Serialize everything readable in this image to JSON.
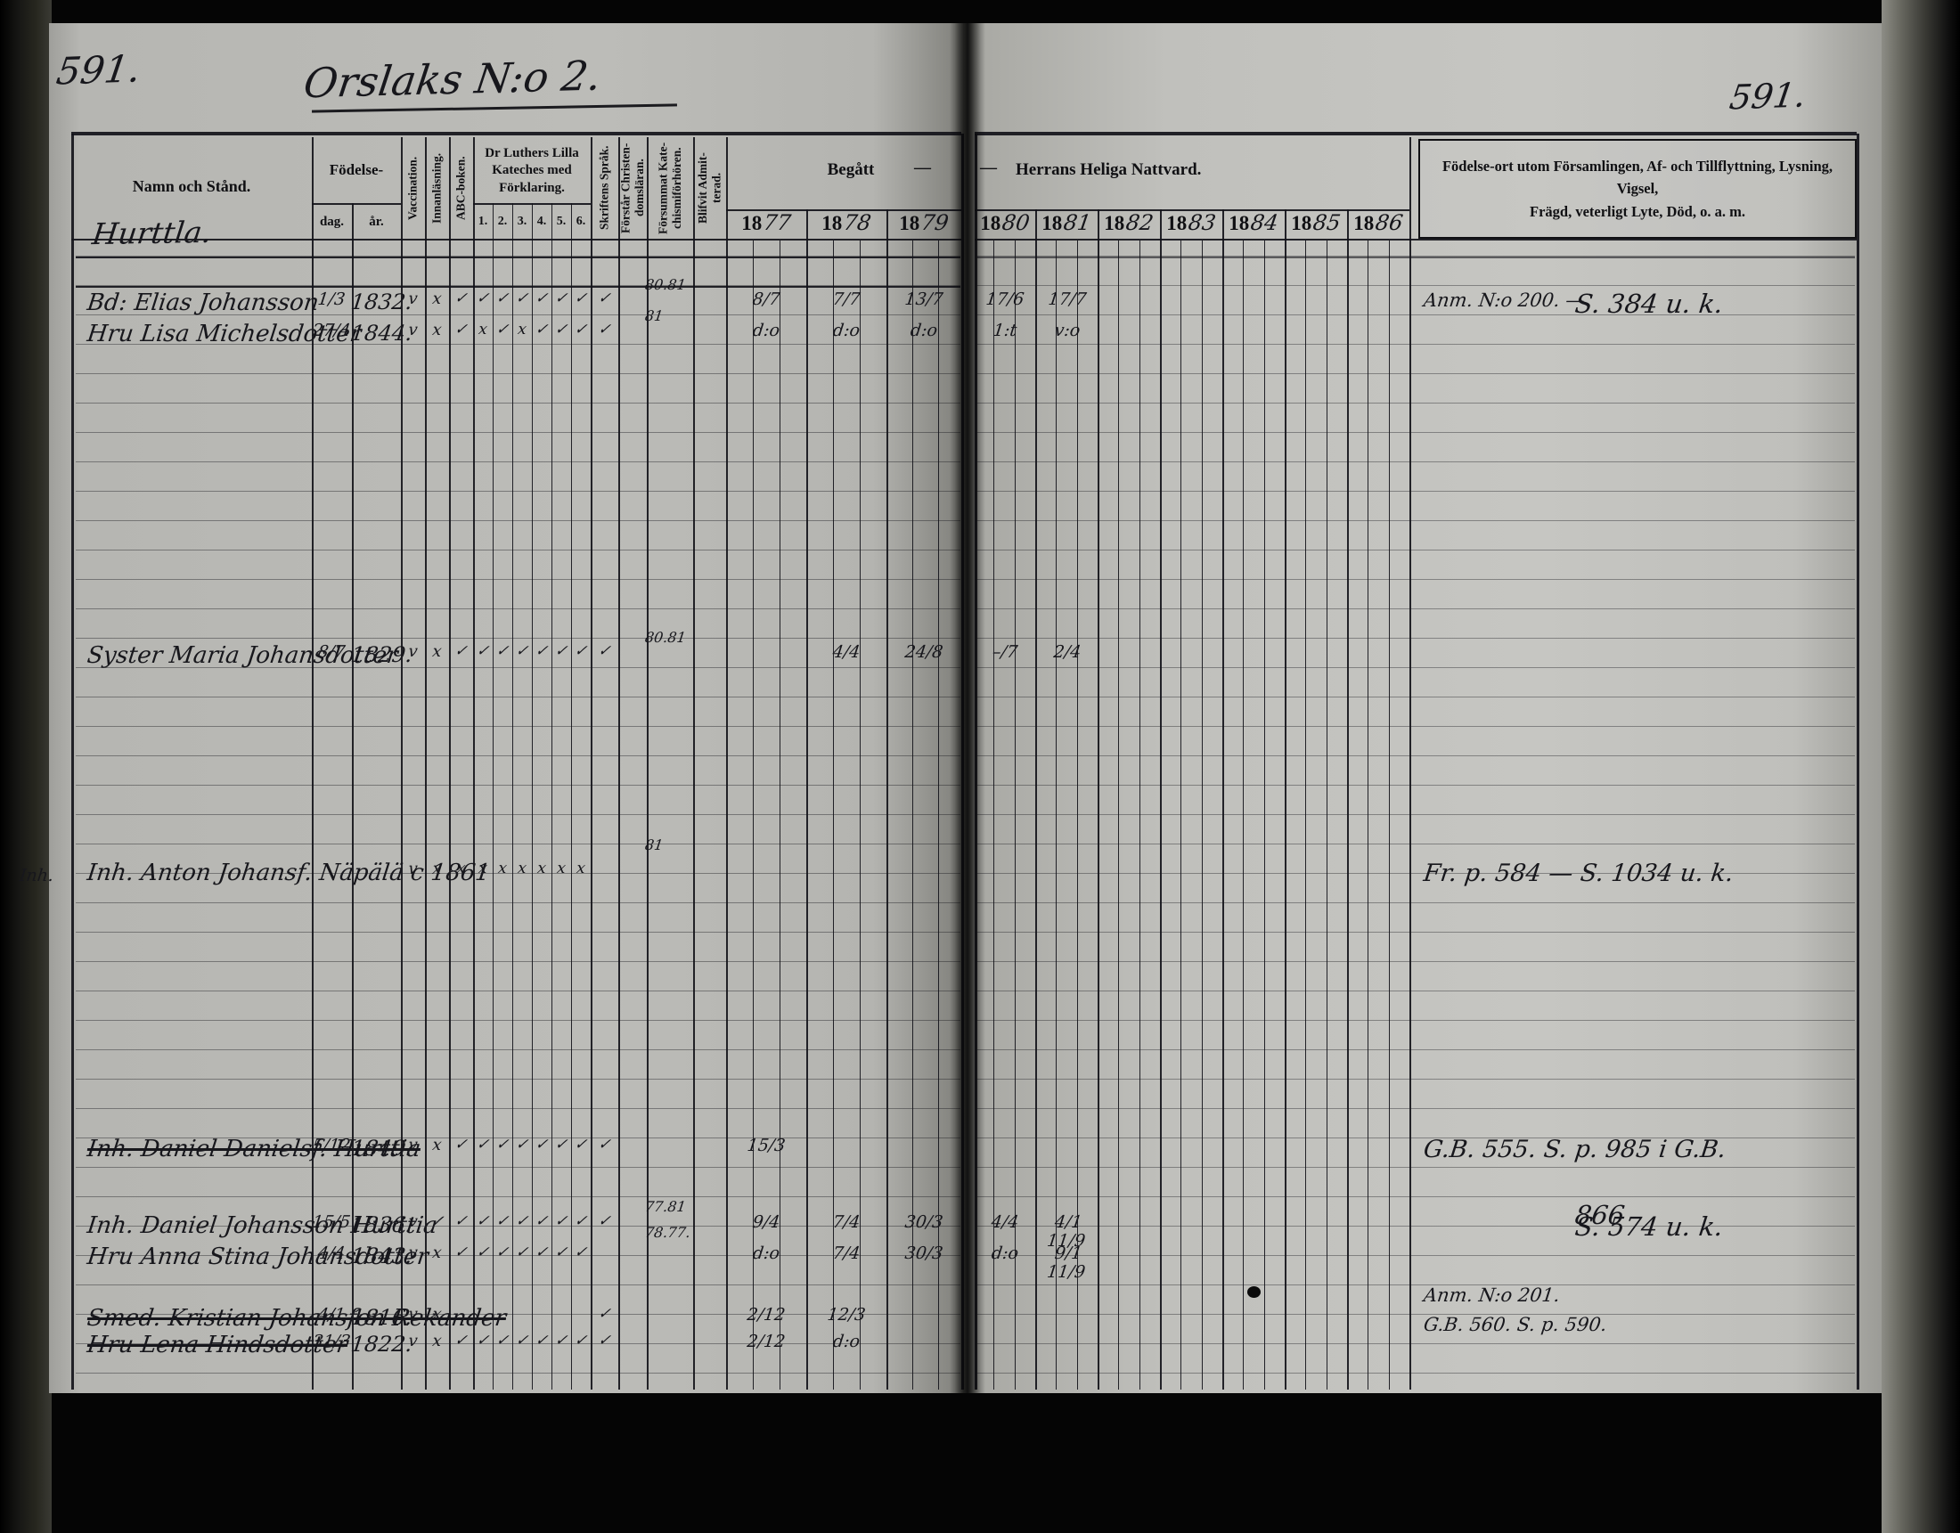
{
  "header": {
    "page_no_left": "591.",
    "page_no_right": "591.",
    "title": "Orslaks N:o 2.",
    "section": "Hurttla.",
    "cols": {
      "namn": "Namn och Stånd.",
      "fodelse": "Födelse-",
      "dag": "dag.",
      "ar": "år.",
      "vaccination": "Vaccination.",
      "innanlasning": "Innanläsning.",
      "abc": "ABC-boken.",
      "luther": "Dr Luthers Lilla\nKateches med\nFörklaring.",
      "k": [
        "1.",
        "2.",
        "3.",
        "4.",
        "5.",
        "6."
      ],
      "skriftens": "Skriftens Språk.",
      "forstar": "Förstår Christen-\ndomsläran.",
      "forsummat": "Försummat Kate-\nchismiförhören.",
      "blifvit": "Blifvit Admit-\nterad.",
      "begatt": "Begått",
      "dash1": "—",
      "dash2": "—",
      "nattvard": "Herrans Heliga Nattvard.",
      "years_prefix": "18",
      "years": [
        "77",
        "78",
        "79",
        "80",
        "81",
        "82",
        "83",
        "84",
        "85",
        "86"
      ],
      "annotation": "Födelse-ort utom Församlingen, Af- och Tillflyttning, Lysning, Vigsel,\nFrägd, veterligt Lyte, Död, o. a. m."
    }
  },
  "margin_note": "Inh.",
  "rows": [
    {
      "line": 1.55,
      "forsum": "80.81"
    },
    {
      "line": 2,
      "name": "Bd: Elias Johansson",
      "dag": "1/3",
      "ar": "1832.",
      "vacc": "v",
      "innan": "x",
      "abc": "✓",
      "k1": "✓",
      "k2": "✓",
      "k3": "✓",
      "k4": "✓",
      "k5": "✓",
      "k6": "✓",
      "skrift": "✓",
      "y1877": "8/7",
      "y1878": "7/7",
      "y1879": "13/7",
      "y1880": "17/6",
      "y1881": "17/7",
      "anm": "Anm. N:o 200. —",
      "anm2": "S. 384 u. k."
    },
    {
      "line": 2.62,
      "forsum": "81"
    },
    {
      "line": 3.05,
      "name": "Hru Lisa Michelsdotter",
      "dag": "27/4",
      "ar": "1844.",
      "vacc": "v",
      "innan": "x",
      "abc": "✓",
      "k1": "x",
      "k2": "✓",
      "k3": "x",
      "k4": "✓",
      "k5": "✓",
      "k6": "✓",
      "skrift": "✓",
      "y1877": "d:o",
      "y1878": "d:o",
      "y1879": "d:o",
      "y1880": "1:t",
      "y1881": "v:o"
    },
    {
      "line": 13.55,
      "forsum": "80.81"
    },
    {
      "line": 14,
      "name": "Syster Maria Johansdotter",
      "dag": "8/7",
      "ar": "1829.",
      "vacc": "v",
      "innan": "x",
      "abc": "✓",
      "k1": "✓",
      "k2": "✓",
      "k3": "✓",
      "k4": "✓",
      "k5": "✓",
      "k6": "✓",
      "skrift": "✓",
      "y1878": "4/4",
      "y1879": "24/8",
      "y1880": "–/7",
      "y1881": "2/4"
    },
    {
      "line": 20.6,
      "forsum": "81"
    },
    {
      "line": 21.4,
      "name": "Inh. Anton Johansf. Näpälä c 1861",
      "vacc": "v",
      "innan": "x",
      "abc": "x",
      "k1": "x",
      "k2": "x",
      "k3": "x",
      "k4": "x",
      "k5": "x",
      "k6": "x",
      "anmbig": "Fr. p. 584 —  S. 1034 u. k."
    },
    {
      "line": 30.8,
      "struck": true,
      "name": "Inh. Daniel Danielsf. Hurttia",
      "dag": "5/12",
      "ar": "1849.",
      "vacc": "v",
      "innan": "x",
      "abc": "✓",
      "k1": "✓",
      "k2": "✓",
      "k3": "✓",
      "k4": "✓",
      "k5": "✓",
      "k6": "✓",
      "skrift": "✓",
      "y1877": "15/3",
      "anmbig": "G.B. 555. S. p. 985 i G.B."
    },
    {
      "line": 32.9,
      "forsum": "77.81"
    },
    {
      "line": 33.0,
      "anm2": "866"
    },
    {
      "line": 33.4,
      "name": "Inh. Daniel Johansson Hurttia",
      "dag": "15/5",
      "ar": "1836.",
      "vacc": "v",
      "innan": "✓",
      "abc": "✓",
      "k1": "✓",
      "k2": "✓",
      "k3": "✓",
      "k4": "✓",
      "k5": "✓",
      "k6": "✓",
      "skrift": "✓",
      "y1877": "9/4",
      "y1878": "7/4",
      "y1879": "30/3",
      "y1880": "4/4",
      "y1881": "4/1 11/9",
      "anm2": "S. 574 u. k."
    },
    {
      "line": 33.78,
      "forsum": "78.77."
    },
    {
      "line": 34.45,
      "name": "Hru Anna Stina Johansdotter",
      "dag": "4/4",
      "ar": "1843.",
      "vacc": "v",
      "innan": "x",
      "abc": "✓",
      "k1": "✓",
      "k2": "✓",
      "k3": "✓",
      "k4": "✓",
      "k5": "✓",
      "k6": "✓",
      "y1877": "d:o",
      "y1878": "7/4",
      "y1879": "30/3",
      "y1880": "d:o",
      "y1881": "9/1 11/9"
    },
    {
      "line": 35.85,
      "anm": "Anm. N:o 201."
    },
    {
      "line": 36.55,
      "struck": true,
      "name": "Smed. Kristian Johansfon Rekander",
      "dag": "4/1",
      "ar": "1816.",
      "vacc": "v",
      "innan": "x",
      "skrift": "✓",
      "y1877": "2/12",
      "y1878": "12/3"
    },
    {
      "line": 36.85,
      "anm": "G.B. 560. S. p. 590."
    },
    {
      "line": 37.45,
      "struck": true,
      "name": "Hru Lena Hindsdotter",
      "dag": "31/3",
      "ar": "1822.",
      "vacc": "v",
      "innan": "x",
      "abc": "✓",
      "k1": "✓",
      "k2": "✓",
      "k3": "✓",
      "k4": "✓",
      "k5": "✓",
      "k6": "✓",
      "skrift": "✓",
      "y1877": "2/12",
      "y1878": "d:o"
    }
  ]
}
